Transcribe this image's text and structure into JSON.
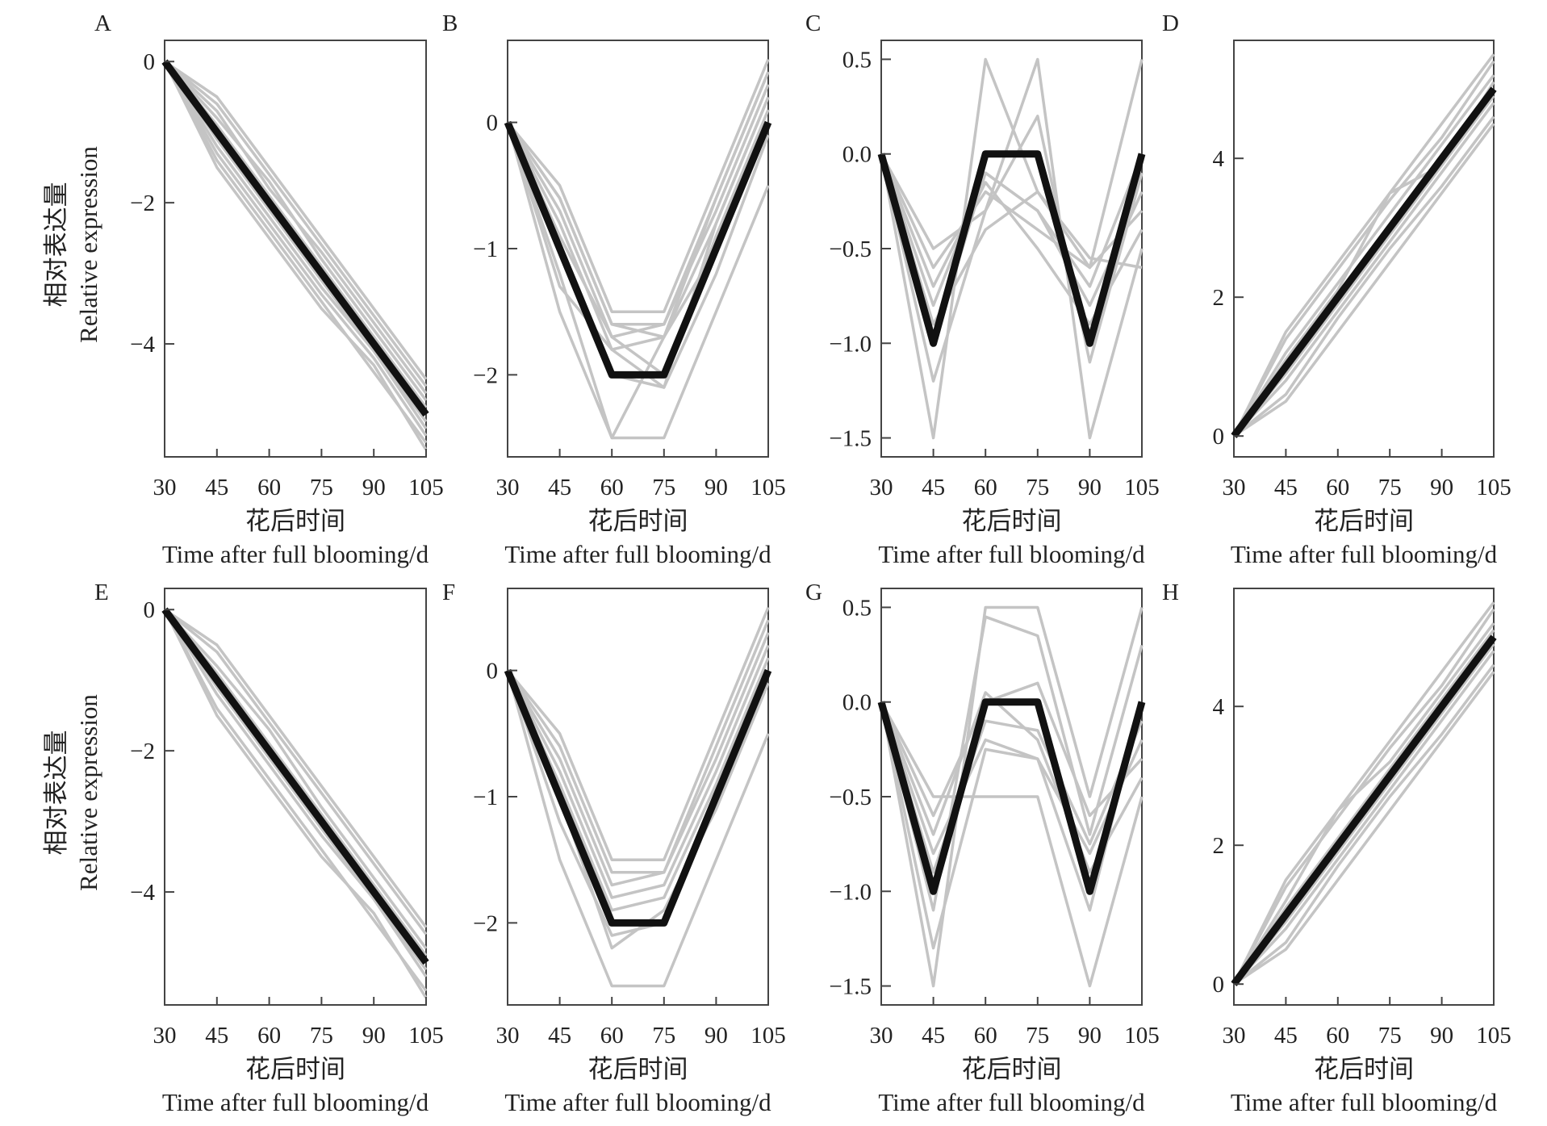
{
  "figure": {
    "ylabel_cn": "相对表达量",
    "ylabel_en": "Relative expression",
    "xlabel_cn": "花后时间",
    "xlabel_en": "Time after full blooming/d"
  },
  "chart_data": [
    {
      "label": "A",
      "type": "line",
      "x": [
        30,
        45,
        60,
        75,
        90,
        105
      ],
      "xlim": [
        30,
        105
      ],
      "ylim": [
        -5.6,
        0.3
      ],
      "yticks": [
        0,
        -2,
        -4
      ],
      "ytick_labels": [
        "0",
        "−2",
        "−4"
      ],
      "profile": [
        0,
        -1,
        -2,
        -3,
        -4,
        -5
      ],
      "series": [
        [
          0,
          -0.5,
          -1.5,
          -2.5,
          -3.5,
          -4.5
        ],
        [
          0,
          -1.5,
          -2.5,
          -3.5,
          -4.3,
          -5.5
        ],
        [
          0,
          -0.8,
          -1.7,
          -2.8,
          -3.8,
          -4.8
        ],
        [
          0,
          -1.2,
          -2.2,
          -3.2,
          -4.1,
          -5.2
        ],
        [
          0,
          -0.6,
          -1.6,
          -2.6,
          -3.6,
          -4.6
        ],
        [
          0,
          -1.4,
          -2.4,
          -3.4,
          -4.4,
          -5.4
        ],
        [
          0,
          -0.9,
          -1.9,
          -2.9,
          -3.9,
          -4.9
        ],
        [
          0,
          -1.1,
          -2.1,
          -3.1,
          -4.1,
          -5.1
        ],
        [
          0,
          -0.7,
          -1.8,
          -2.7,
          -3.7,
          -4.7
        ],
        [
          0,
          -1.3,
          -2.3,
          -3.3,
          -4.2,
          -5.3
        ]
      ]
    },
    {
      "label": "B",
      "type": "line",
      "x": [
        30,
        45,
        60,
        75,
        90,
        105
      ],
      "xlim": [
        30,
        105
      ],
      "ylim": [
        -2.65,
        0.65
      ],
      "yticks": [
        0,
        -1,
        -2
      ],
      "ytick_labels": [
        "0",
        "−1",
        "−2"
      ],
      "profile": [
        0,
        -1,
        -2,
        -2,
        -1,
        0
      ],
      "series": [
        [
          0,
          -0.5,
          -1.5,
          -1.5,
          -0.5,
          0.5
        ],
        [
          0,
          -1.5,
          -2.5,
          -2.5,
          -1.5,
          -0.5
        ],
        [
          0,
          -0.6,
          -1.6,
          -1.6,
          -0.6,
          0.4
        ],
        [
          0,
          -0.8,
          -1.8,
          -1.7,
          -0.8,
          0.2
        ],
        [
          0,
          -1.0,
          -2.0,
          -2.1,
          -1.2,
          -0.1
        ],
        [
          0,
          -1.2,
          -2.5,
          -1.7,
          -1.0,
          0.0
        ],
        [
          0,
          -0.7,
          -1.7,
          -1.6,
          -0.7,
          0.3
        ],
        [
          0,
          -0.9,
          -1.7,
          -2.0,
          -0.9,
          0.1
        ],
        [
          0,
          -1.3,
          -1.8,
          -2.1,
          -0.8,
          0.2
        ],
        [
          0,
          -0.6,
          -1.6,
          -1.7,
          -0.6,
          0.4
        ]
      ]
    },
    {
      "label": "C",
      "type": "line",
      "x": [
        30,
        45,
        60,
        75,
        90,
        105
      ],
      "xlim": [
        30,
        105
      ],
      "ylim": [
        -1.6,
        0.6
      ],
      "yticks": [
        0.5,
        0,
        -0.5,
        -1,
        -1.5
      ],
      "ytick_labels": [
        "0.5",
        "0.0",
        "−0.5",
        "−1.0",
        "−1.5"
      ],
      "profile": [
        0,
        -1,
        0,
        0,
        -1,
        0
      ],
      "series": [
        [
          0,
          -1.5,
          0.5,
          -0.2,
          -0.6,
          0.5
        ],
        [
          0,
          -0.5,
          -0.3,
          0.5,
          -1.5,
          -0.5
        ],
        [
          0,
          -0.8,
          -0.1,
          -0.3,
          -0.8,
          -0.2
        ],
        [
          0,
          -0.6,
          -0.2,
          -0.4,
          -0.6,
          -0.3
        ],
        [
          0,
          -1.2,
          -0.3,
          0.2,
          -1.1,
          -0.1
        ],
        [
          0,
          -0.7,
          -0.15,
          -0.5,
          -0.9,
          -0.4
        ],
        [
          0,
          -0.9,
          -0.4,
          -0.2,
          -0.55,
          -0.6
        ],
        [
          0,
          -1.0,
          -0.1,
          -0.3,
          -0.7,
          0.0
        ]
      ]
    },
    {
      "label": "D",
      "type": "line",
      "x": [
        30,
        45,
        60,
        75,
        90,
        105
      ],
      "xlim": [
        30,
        105
      ],
      "ylim": [
        -0.3,
        5.7
      ],
      "yticks": [
        4,
        2,
        0
      ],
      "ytick_labels": [
        "4",
        "2",
        "0"
      ],
      "profile": [
        0,
        1,
        2,
        3,
        4,
        5
      ],
      "series": [
        [
          0,
          1.5,
          2.5,
          3.5,
          4.5,
          5.5
        ],
        [
          0,
          0.5,
          1.5,
          2.5,
          3.5,
          4.5
        ],
        [
          0,
          0.8,
          1.8,
          2.8,
          3.8,
          4.8
        ],
        [
          0,
          1.2,
          2.2,
          3.2,
          4.2,
          5.2
        ],
        [
          0,
          0.6,
          1.7,
          2.7,
          3.6,
          4.6
        ],
        [
          0,
          1.4,
          2.4,
          3.4,
          4.3,
          5.4
        ],
        [
          0,
          0.9,
          1.9,
          2.9,
          3.9,
          4.9
        ],
        [
          0,
          1.1,
          2.1,
          3.5,
          3.9,
          5.1
        ]
      ]
    },
    {
      "label": "E",
      "type": "line",
      "x": [
        30,
        45,
        60,
        75,
        90,
        105
      ],
      "xlim": [
        30,
        105
      ],
      "ylim": [
        -5.6,
        0.3
      ],
      "yticks": [
        0,
        -2,
        -4
      ],
      "ytick_labels": [
        "0",
        "−2",
        "−4"
      ],
      "profile": [
        0,
        -1,
        -2,
        -3,
        -4,
        -5
      ],
      "series": [
        [
          0,
          -0.5,
          -1.5,
          -2.5,
          -3.5,
          -4.5
        ],
        [
          0,
          -1.5,
          -2.5,
          -3.5,
          -4.3,
          -5.5
        ],
        [
          0,
          -0.8,
          -1.7,
          -2.8,
          -3.8,
          -4.8
        ],
        [
          0,
          -1.2,
          -2.2,
          -3.2,
          -4.1,
          -5.2
        ],
        [
          0,
          -0.6,
          -1.6,
          -2.6,
          -3.6,
          -4.6
        ],
        [
          0,
          -1.4,
          -2.4,
          -3.4,
          -4.4,
          -5.4
        ],
        [
          0,
          -0.9,
          -1.9,
          -2.9,
          -3.9,
          -4.9
        ],
        [
          0,
          -1.1,
          -2.1,
          -3.1,
          -4.1,
          -5.1
        ]
      ]
    },
    {
      "label": "F",
      "type": "line",
      "x": [
        30,
        45,
        60,
        75,
        90,
        105
      ],
      "xlim": [
        30,
        105
      ],
      "ylim": [
        -2.65,
        0.65
      ],
      "yticks": [
        0,
        -1,
        -2
      ],
      "ytick_labels": [
        "0",
        "−1",
        "−2"
      ],
      "profile": [
        0,
        -1,
        -2,
        -2,
        -1,
        0
      ],
      "series": [
        [
          0,
          -0.5,
          -1.5,
          -1.5,
          -0.5,
          0.5
        ],
        [
          0,
          -1.5,
          -2.5,
          -2.5,
          -1.5,
          -0.5
        ],
        [
          0,
          -0.6,
          -1.6,
          -1.6,
          -0.6,
          0.4
        ],
        [
          0,
          -0.8,
          -1.8,
          -1.7,
          -0.8,
          0.2
        ],
        [
          0,
          -1.0,
          -2.2,
          -1.9,
          -1.1,
          -0.1
        ],
        [
          0,
          -0.7,
          -1.7,
          -1.6,
          -0.7,
          0.3
        ],
        [
          0,
          -0.9,
          -1.9,
          -1.8,
          -0.9,
          0.1
        ],
        [
          0,
          -1.2,
          -2.1,
          -2.0,
          -1.0,
          0.0
        ]
      ]
    },
    {
      "label": "G",
      "type": "line",
      "x": [
        30,
        45,
        60,
        75,
        90,
        105
      ],
      "xlim": [
        30,
        105
      ],
      "ylim": [
        -1.6,
        0.6
      ],
      "yticks": [
        0.5,
        0,
        -0.5,
        -1,
        -1.5
      ],
      "ytick_labels": [
        "0.5",
        "0.0",
        "−0.5",
        "−1.0",
        "−1.5"
      ],
      "profile": [
        0,
        -1,
        0,
        0,
        -1,
        0
      ],
      "series": [
        [
          0,
          -1.5,
          0.5,
          0.5,
          -0.5,
          0.5
        ],
        [
          0,
          -0.5,
          -0.5,
          -0.5,
          -1.5,
          -0.5
        ],
        [
          0,
          -0.8,
          -0.2,
          -0.3,
          -0.8,
          -0.2
        ],
        [
          0,
          -0.6,
          0.0,
          0.1,
          -0.6,
          -0.3
        ],
        [
          0,
          -1.3,
          -0.25,
          -0.3,
          -1.1,
          0.0
        ],
        [
          0,
          -0.7,
          0.05,
          -0.2,
          -0.9,
          -0.4
        ],
        [
          0,
          -1.1,
          0.45,
          0.35,
          -0.7,
          0.3
        ],
        [
          0,
          -0.9,
          -0.1,
          -0.15,
          -0.75,
          -0.1
        ]
      ]
    },
    {
      "label": "H",
      "type": "line",
      "x": [
        30,
        45,
        60,
        75,
        90,
        105
      ],
      "xlim": [
        30,
        105
      ],
      "ylim": [
        -0.3,
        5.7
      ],
      "yticks": [
        4,
        2,
        0
      ],
      "ytick_labels": [
        "4",
        "2",
        "0"
      ],
      "profile": [
        0,
        1,
        2,
        3,
        4,
        5
      ],
      "series": [
        [
          0,
          1.5,
          2.5,
          3.5,
          4.5,
          5.5
        ],
        [
          0,
          0.5,
          1.5,
          2.5,
          3.5,
          4.5
        ],
        [
          0,
          0.8,
          1.8,
          2.8,
          3.8,
          4.8
        ],
        [
          0,
          1.2,
          2.5,
          3.2,
          4.2,
          5.2
        ],
        [
          0,
          0.6,
          1.7,
          2.7,
          3.6,
          4.6
        ],
        [
          0,
          1.4,
          2.4,
          3.4,
          4.3,
          5.4
        ],
        [
          0,
          0.9,
          1.9,
          2.9,
          3.9,
          4.9
        ],
        [
          0,
          1.1,
          2.1,
          3.1,
          4.1,
          5.1
        ]
      ]
    }
  ]
}
